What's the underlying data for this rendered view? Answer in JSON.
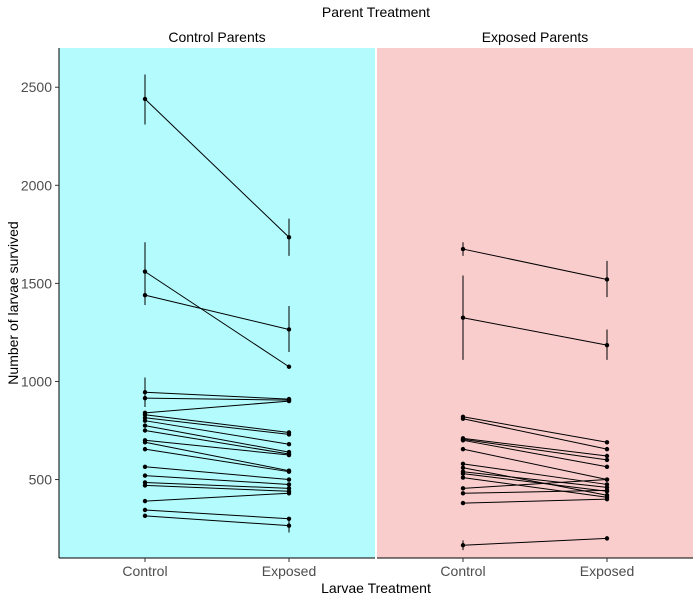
{
  "chart_data": {
    "type": "line",
    "title": "Parent Treatment",
    "xlabel": "Larvae Treatment",
    "ylabel": "Number of larvae survived",
    "x_categories": [
      "Control",
      "Exposed"
    ],
    "y_ticks": [
      500,
      1000,
      1500,
      2000,
      2500
    ],
    "ylim": [
      100,
      2700
    ],
    "grid": false,
    "panels": [
      {
        "name": "Control Parents",
        "background": "#b3fbfd",
        "lines": [
          {
            "values": [
              2440,
              1735
            ],
            "errors": [
              [
                2310,
                2565
              ],
              [
                1640,
                1830
              ]
            ]
          },
          {
            "values": [
              1560,
              1075
            ],
            "errors": [
              [
                1390,
                1710
              ],
              [
                null,
                null
              ]
            ]
          },
          {
            "values": [
              1440,
              1265
            ],
            "errors": [
              [
                null,
                null
              ],
              [
                1150,
                1385
              ]
            ]
          },
          {
            "values": [
              945,
              910
            ],
            "errors": [
              [
                870,
                1020
              ],
              [
                null,
                null
              ]
            ]
          },
          {
            "values": [
              915,
              905
            ],
            "errors": [
              [
                null,
                null
              ],
              [
                null,
                null
              ]
            ]
          },
          {
            "values": [
              840,
              900
            ],
            "errors": [
              [
                null,
                null
              ],
              [
                null,
                null
              ]
            ]
          },
          {
            "values": [
              830,
              740
            ],
            "errors": [
              [
                null,
                null
              ],
              [
                null,
                null
              ]
            ]
          },
          {
            "values": [
              815,
              730
            ],
            "errors": [
              [
                null,
                null
              ],
              [
                null,
                null
              ]
            ]
          },
          {
            "values": [
              800,
              680
            ],
            "errors": [
              [
                null,
                null
              ],
              [
                null,
                null
              ]
            ]
          },
          {
            "values": [
              775,
              640
            ],
            "errors": [
              [
                null,
                null
              ],
              [
                null,
                null
              ]
            ]
          },
          {
            "values": [
              750,
              630
            ],
            "errors": [
              [
                null,
                null
              ],
              [
                null,
                null
              ]
            ]
          },
          {
            "values": [
              700,
              625
            ],
            "errors": [
              [
                null,
                null
              ],
              [
                null,
                null
              ]
            ]
          },
          {
            "values": [
              690,
              545
            ],
            "errors": [
              [
                null,
                null
              ],
              [
                null,
                null
              ]
            ]
          },
          {
            "values": [
              655,
              540
            ],
            "errors": [
              [
                null,
                null
              ],
              [
                null,
                null
              ]
            ]
          },
          {
            "values": [
              565,
              500
            ],
            "errors": [
              [
                null,
                null
              ],
              [
                null,
                null
              ]
            ]
          },
          {
            "values": [
              520,
              475
            ],
            "errors": [
              [
                null,
                null
              ],
              [
                null,
                null
              ]
            ]
          },
          {
            "values": [
              485,
              455
            ],
            "errors": [
              [
                null,
                null
              ],
              [
                null,
                null
              ]
            ]
          },
          {
            "values": [
              470,
              440
            ],
            "errors": [
              [
                null,
                null
              ],
              [
                null,
                null
              ]
            ]
          },
          {
            "values": [
              390,
              430
            ],
            "errors": [
              [
                null,
                null
              ],
              [
                null,
                null
              ]
            ]
          },
          {
            "values": [
              345,
              300
            ],
            "errors": [
              [
                null,
                null
              ],
              [
                null,
                null
              ]
            ]
          },
          {
            "values": [
              315,
              265
            ],
            "errors": [
              [
                null,
                null
              ],
              [
                230,
                295
              ]
            ]
          }
        ]
      },
      {
        "name": "Exposed Parents",
        "background": "#f9cdcc",
        "lines": [
          {
            "values": [
              1675,
              1520
            ],
            "errors": [
              [
                1640,
                1710
              ],
              [
                1430,
                1615
              ]
            ]
          },
          {
            "values": [
              1325,
              1185
            ],
            "errors": [
              [
                1110,
                1540
              ],
              [
                1110,
                1265
              ]
            ]
          },
          {
            "values": [
              820,
              690
            ],
            "errors": [
              [
                null,
                null
              ],
              [
                null,
                null
              ]
            ]
          },
          {
            "values": [
              810,
              655
            ],
            "errors": [
              [
                null,
                null
              ],
              [
                null,
                null
              ]
            ]
          },
          {
            "values": [
              710,
              620
            ],
            "errors": [
              [
                null,
                null
              ],
              [
                null,
                null
              ]
            ]
          },
          {
            "values": [
              705,
              600
            ],
            "errors": [
              [
                null,
                null
              ],
              [
                null,
                null
              ]
            ]
          },
          {
            "values": [
              700,
              565
            ],
            "errors": [
              [
                null,
                null
              ],
              [
                null,
                null
              ]
            ]
          },
          {
            "values": [
              655,
              500
            ],
            "errors": [
              [
                null,
                null
              ],
              [
                null,
                null
              ]
            ]
          },
          {
            "values": [
              580,
              475
            ],
            "errors": [
              [
                null,
                null
              ],
              [
                null,
                null
              ]
            ]
          },
          {
            "values": [
              560,
              420
            ],
            "errors": [
              [
                null,
                null
              ],
              [
                null,
                null
              ]
            ]
          },
          {
            "values": [
              540,
              460
            ],
            "errors": [
              [
                null,
                null
              ],
              [
                null,
                null
              ]
            ]
          },
          {
            "values": [
              530,
              440
            ],
            "errors": [
              [
                null,
                null
              ],
              [
                null,
                null
              ]
            ]
          },
          {
            "values": [
              510,
              410
            ],
            "errors": [
              [
                null,
                null
              ],
              [
                null,
                null
              ]
            ]
          },
          {
            "values": [
              455,
              500
            ],
            "errors": [
              [
                null,
                null
              ],
              [
                null,
                null
              ]
            ]
          },
          {
            "values": [
              430,
              445
            ],
            "errors": [
              [
                null,
                null
              ],
              [
                null,
                null
              ]
            ]
          },
          {
            "values": [
              380,
              400
            ],
            "errors": [
              [
                null,
                null
              ],
              [
                null,
                null
              ]
            ]
          },
          {
            "values": [
              165,
              200
            ],
            "errors": [
              [
                140,
                190
              ],
              [
                null,
                null
              ]
            ]
          }
        ]
      }
    ]
  }
}
